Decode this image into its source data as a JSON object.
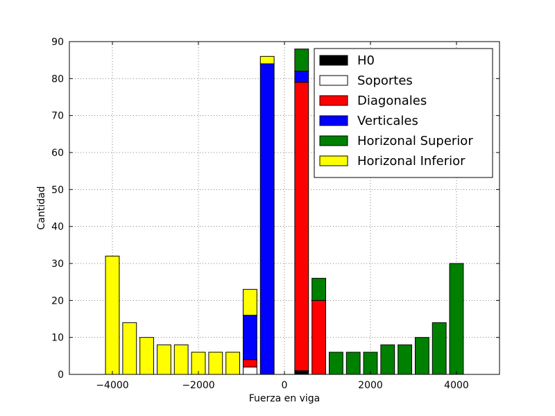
{
  "chart_data": {
    "type": "bar",
    "stacked": true,
    "xlabel": "Fuerza en viga",
    "ylabel": "Cantidad",
    "xlim": [
      -5000,
      5000
    ],
    "ylim": [
      0,
      90
    ],
    "xticks": [
      -4000,
      -2000,
      0,
      2000,
      4000
    ],
    "xtick_labels": [
      "−4000",
      "−2000",
      "0",
      "2000",
      "4000"
    ],
    "yticks": [
      0,
      10,
      20,
      30,
      40,
      50,
      60,
      70,
      80,
      90
    ],
    "grid": true,
    "legend_position": "top-right",
    "x": [
      -4000,
      -3600,
      -3200,
      -2800,
      -2400,
      -2000,
      -1600,
      -1200,
      -800,
      -400,
      0,
      400,
      800,
      1200,
      1600,
      2000,
      2400,
      2800,
      3200,
      3600,
      4000
    ],
    "bin_width": 320,
    "series": [
      {
        "name": "H0",
        "color": "#000000",
        "values": [
          0,
          0,
          0,
          0,
          0,
          0,
          0,
          0,
          0,
          0,
          0,
          1,
          0,
          0,
          0,
          0,
          0,
          0,
          0,
          0,
          0
        ]
      },
      {
        "name": "Soportes",
        "color": "#ffffff",
        "values": [
          0,
          0,
          0,
          0,
          0,
          0,
          0,
          0,
          2,
          0,
          0,
          0,
          0,
          0,
          0,
          0,
          0,
          0,
          0,
          0,
          0
        ]
      },
      {
        "name": "Diagonales",
        "color": "#ff0000",
        "values": [
          0,
          0,
          0,
          0,
          0,
          0,
          0,
          0,
          2,
          0,
          0,
          78,
          20,
          0,
          0,
          0,
          0,
          0,
          0,
          0,
          0
        ]
      },
      {
        "name": "Verticales",
        "color": "#0000ff",
        "values": [
          0,
          0,
          0,
          0,
          0,
          0,
          0,
          0,
          12,
          84,
          0,
          3,
          0,
          0,
          0,
          0,
          0,
          0,
          0,
          0,
          0
        ]
      },
      {
        "name": "Horizonal Superior",
        "color": "#008000",
        "values": [
          0,
          0,
          0,
          0,
          0,
          0,
          0,
          0,
          0,
          0,
          0,
          6,
          6,
          6,
          6,
          6,
          8,
          8,
          10,
          14,
          30
        ]
      },
      {
        "name": "Horizonal Inferior",
        "color": "#ffff00",
        "values": [
          32,
          14,
          10,
          8,
          8,
          6,
          6,
          6,
          7,
          2,
          0,
          0,
          0,
          0,
          0,
          0,
          0,
          0,
          0,
          0,
          0
        ]
      }
    ]
  }
}
